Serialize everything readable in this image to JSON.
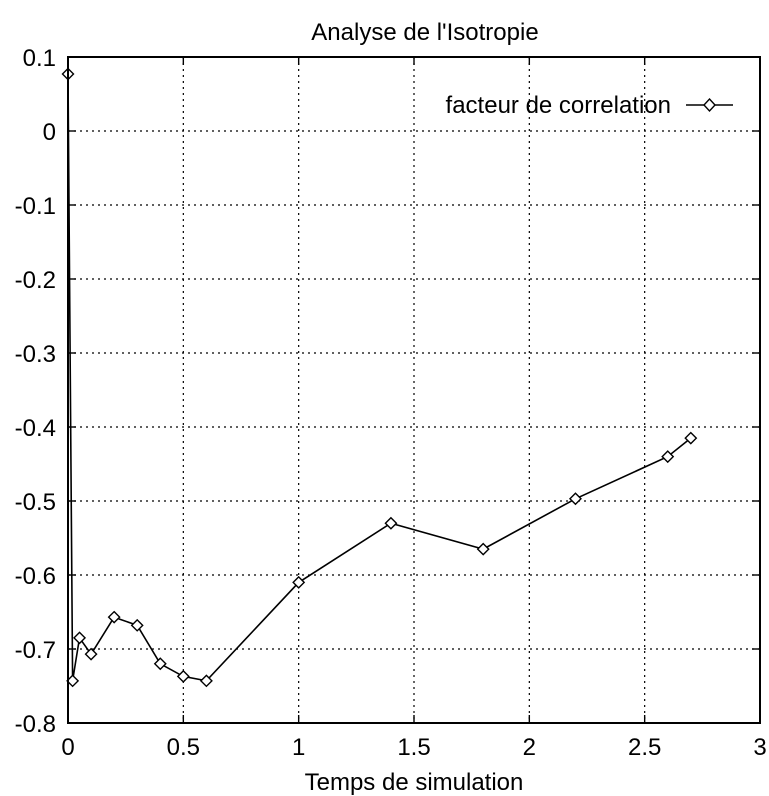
{
  "chart_data": {
    "type": "line",
    "title": "Analyse de l'Isotropie",
    "xlabel": "Temps de simulation",
    "ylabel": "",
    "xlim": [
      0,
      3
    ],
    "ylim": [
      -0.8,
      0.1
    ],
    "xticks": [
      "0",
      "0.5",
      "1",
      "1.5",
      "2",
      "2.5",
      "3"
    ],
    "yticks": [
      "0.1",
      "0",
      "-0.1",
      "-0.2",
      "-0.3",
      "-0.4",
      "-0.5",
      "-0.6",
      "-0.7",
      "-0.8"
    ],
    "grid": true,
    "legend_position": "top-right",
    "series": [
      {
        "name": "facteur de correlation",
        "marker": "diamond",
        "x": [
          0,
          0.02,
          0.05,
          0.1,
          0.2,
          0.3,
          0.4,
          0.5,
          0.6,
          1.0,
          1.4,
          1.8,
          2.2,
          2.6,
          2.7
        ],
        "y": [
          0.077,
          -0.743,
          -0.685,
          -0.707,
          -0.657,
          -0.668,
          -0.72,
          -0.737,
          -0.743,
          -0.61,
          -0.53,
          -0.565,
          -0.497,
          -0.44,
          -0.415
        ]
      }
    ]
  }
}
